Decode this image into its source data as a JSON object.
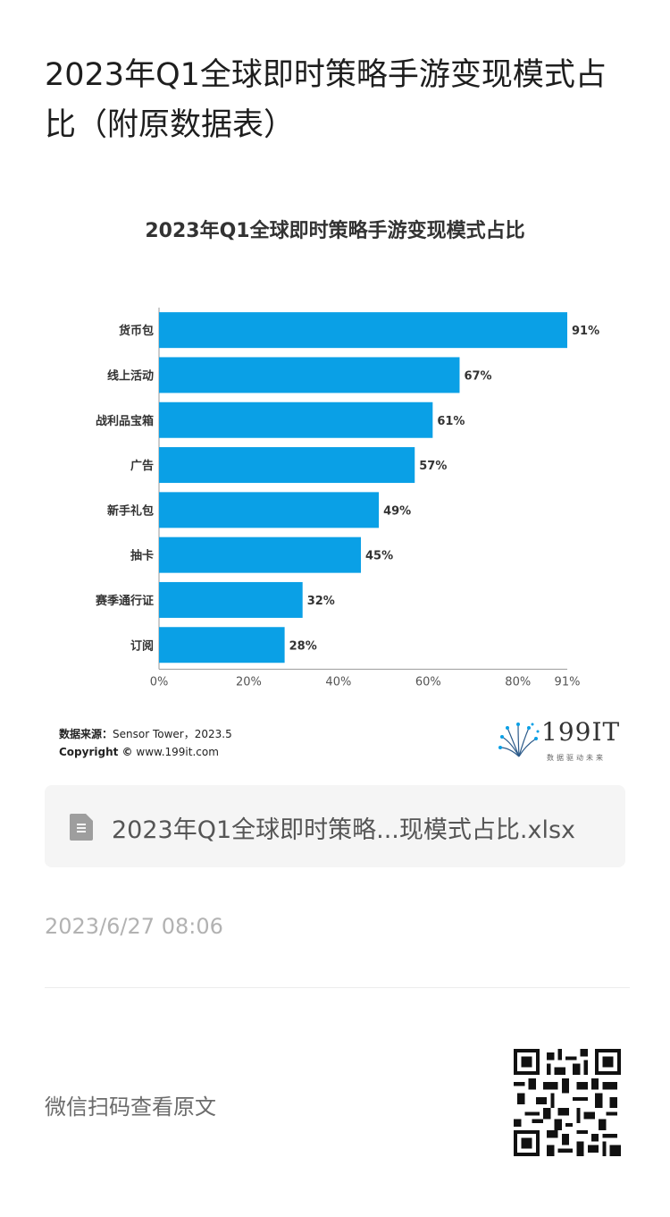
{
  "article": {
    "title": "2023年Q1全球即时策略手游变现模式占比（附原数据表）"
  },
  "chart_data": {
    "type": "bar",
    "orientation": "horizontal",
    "title": "2023年Q1全球即时策略手游变现模式占比",
    "categories": [
      "货币包",
      "线上活动",
      "战利品宝箱",
      "广告",
      "新手礼包",
      "抽卡",
      "赛季通行证",
      "订阅"
    ],
    "values": [
      91,
      67,
      61,
      57,
      49,
      45,
      32,
      28
    ],
    "value_labels": [
      "91%",
      "67%",
      "61%",
      "57%",
      "49%",
      "45%",
      "32%",
      "28%"
    ],
    "x_ticks": [
      0,
      20,
      40,
      60,
      80,
      91
    ],
    "x_tick_labels": [
      "0%",
      "20%",
      "40%",
      "60%",
      "80%",
      "91%"
    ],
    "xlim": [
      0,
      91
    ],
    "grid": false,
    "bar_color": "#0aa0e6"
  },
  "source": {
    "label": "数据来源：",
    "text": "Sensor Tower，2023.5",
    "copyright_label": "Copyright ©",
    "copyright_text": "www.199it.com"
  },
  "logo": {
    "text": "199IT",
    "sub": "数据驱动未来"
  },
  "attachment": {
    "file_name": "2023年Q1全球即时策略...现模式占比.xlsx",
    "icon": "spreadsheet-file-icon"
  },
  "meta": {
    "date": "2023/6/27 08:06",
    "qr_hint": "微信扫码查看原文"
  }
}
